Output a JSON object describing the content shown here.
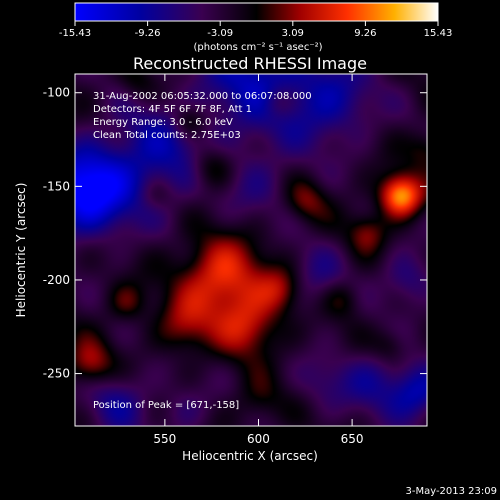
{
  "title": "Reconstructed RHESSI Image",
  "colorbar": {
    "ticks": [
      "-15.43",
      "-9.26",
      "-3.09",
      "3.09",
      "9.26",
      "15.43"
    ],
    "units": "(photons cm⁻² s⁻¹ asec⁻²)",
    "range": [
      -15.43,
      15.43
    ]
  },
  "info_lines": [
    "31-Aug-2002 06:05:32.000 to 06:07:08.000",
    "Detectors: 4F 5F 6F 7F 8F, Att 1",
    "Energy Range: 3.0 - 6.0 keV",
    "Clean    Total counts: 2.75E+03"
  ],
  "peak_text": "Position of Peak = [671,-158]",
  "footer_date": "3-May-2013 23:09",
  "colors": {
    "background": "#000000",
    "foreground": "#ffffff"
  },
  "chart_data": {
    "type": "heatmap",
    "title": "Reconstructed RHESSI Image",
    "xlabel": "Heliocentric X (arcsec)",
    "ylabel": "Heliocentric Y (arcsec)",
    "xlim": [
      502,
      690
    ],
    "ylim": [
      -278,
      -90
    ],
    "xticks": [
      550,
      600,
      650
    ],
    "yticks": [
      -100,
      -150,
      -200,
      -250
    ],
    "grid": false,
    "blobs": [
      {
        "x": 508,
        "y": -153,
        "w": 22,
        "v": -14
      },
      {
        "x": 545,
        "y": -135,
        "w": 28,
        "v": -7
      },
      {
        "x": 600,
        "y": -92,
        "w": 32,
        "v": -8
      },
      {
        "x": 640,
        "y": -105,
        "w": 22,
        "v": -6
      },
      {
        "x": 600,
        "y": -148,
        "w": 22,
        "v": -3
      },
      {
        "x": 630,
        "y": -200,
        "w": 18,
        "v": -4
      },
      {
        "x": 525,
        "y": -265,
        "w": 18,
        "v": -5
      },
      {
        "x": 560,
        "y": -270,
        "w": 14,
        "v": -3
      },
      {
        "x": 662,
        "y": -255,
        "w": 18,
        "v": -5
      },
      {
        "x": 685,
        "y": -260,
        "w": 14,
        "v": -8
      },
      {
        "x": 680,
        "y": -200,
        "w": 14,
        "v": -5
      },
      {
        "x": 635,
        "y": -255,
        "w": 14,
        "v": -3
      },
      {
        "x": 676,
        "y": -155,
        "w": 11,
        "v": 14
      },
      {
        "x": 658,
        "y": -175,
        "w": 10,
        "v": 5
      },
      {
        "x": 580,
        "y": -200,
        "w": 22,
        "v": 10
      },
      {
        "x": 595,
        "y": -225,
        "w": 16,
        "v": 7
      },
      {
        "x": 612,
        "y": -205,
        "w": 12,
        "v": 6
      },
      {
        "x": 560,
        "y": -225,
        "w": 14,
        "v": 5
      },
      {
        "x": 510,
        "y": -245,
        "w": 12,
        "v": 7
      },
      {
        "x": 530,
        "y": -212,
        "w": 10,
        "v": 4
      },
      {
        "x": 575,
        "y": -140,
        "w": 12,
        "v": 6
      },
      {
        "x": 563,
        "y": -115,
        "w": 9,
        "v": 5
      },
      {
        "x": 625,
        "y": -158,
        "w": 11,
        "v": 5
      },
      {
        "x": 610,
        "y": -105,
        "w": 9,
        "v": 4
      },
      {
        "x": 545,
        "y": -155,
        "w": 9,
        "v": 3
      },
      {
        "x": 645,
        "y": -210,
        "w": 10,
        "v": 4
      },
      {
        "x": 600,
        "y": -265,
        "w": 12,
        "v": 3
      },
      {
        "x": 670,
        "y": -235,
        "w": 9,
        "v": 3
      },
      {
        "x": 535,
        "y": -95,
        "w": 10,
        "v": 3
      },
      {
        "x": 690,
        "y": -130,
        "w": 10,
        "v": 4
      }
    ]
  }
}
